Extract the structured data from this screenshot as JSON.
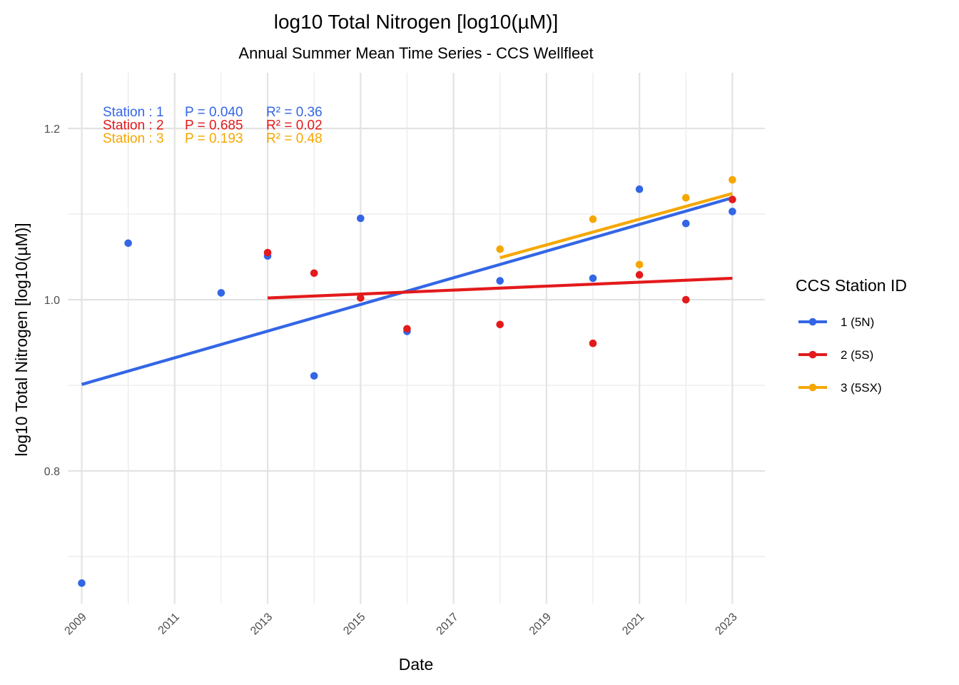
{
  "chart_data": {
    "type": "scatter",
    "title": "log10 Total Nitrogen [log10(µM)]",
    "subtitle": "Annual Summer Mean Time Series - CCS Wellfleet",
    "xlabel": "Date",
    "ylabel": "log10 Total Nitrogen [log10(µM)]",
    "xlim": [
      2008.7,
      2023.7
    ],
    "ylim": [
      0.645,
      1.265
    ],
    "x_ticks": [
      "2009",
      "2011",
      "2013",
      "2015",
      "2017",
      "2019",
      "2021",
      "2023"
    ],
    "y_ticks": [
      "0.8",
      "1.0",
      "1.2"
    ],
    "grid": true,
    "legend": {
      "title": "CCS Station ID",
      "position": "right",
      "entries": [
        "1 (5N)",
        "2 (5S)",
        "3 (5SX)"
      ]
    },
    "annotations": [
      {
        "station": "Station : 1",
        "p": "P = 0.040",
        "r2": "R² = 0.36",
        "color": "#3366e6"
      },
      {
        "station": "Station : 2",
        "p": "P = 0.685",
        "r2": "R² = 0.02",
        "color": "#e31a1c"
      },
      {
        "station": "Station : 3",
        "p": "P = 0.193",
        "r2": "R² = 0.48",
        "color": "#f5a700"
      }
    ],
    "series": [
      {
        "name": "1 (5N)",
        "color": "#3366e6",
        "points": [
          {
            "x": 2009,
            "y": 0.669
          },
          {
            "x": 2010,
            "y": 1.066
          },
          {
            "x": 2012,
            "y": 1.008
          },
          {
            "x": 2013,
            "y": 1.051
          },
          {
            "x": 2014,
            "y": 0.911
          },
          {
            "x": 2015,
            "y": 1.095
          },
          {
            "x": 2016,
            "y": 0.963
          },
          {
            "x": 2018,
            "y": 1.022
          },
          {
            "x": 2020,
            "y": 1.025
          },
          {
            "x": 2021,
            "y": 1.129
          },
          {
            "x": 2022,
            "y": 1.089
          },
          {
            "x": 2023,
            "y": 1.103
          }
        ],
        "trend": [
          {
            "x": 2009,
            "y": 0.901
          },
          {
            "x": 2023,
            "y": 1.119
          }
        ]
      },
      {
        "name": "2 (5S)",
        "color": "#e31a1c",
        "points": [
          {
            "x": 2013,
            "y": 1.055
          },
          {
            "x": 2014,
            "y": 1.031
          },
          {
            "x": 2015,
            "y": 1.002
          },
          {
            "x": 2016,
            "y": 0.966
          },
          {
            "x": 2018,
            "y": 0.971
          },
          {
            "x": 2020,
            "y": 0.949
          },
          {
            "x": 2021,
            "y": 1.029
          },
          {
            "x": 2022,
            "y": 1.0
          },
          {
            "x": 2023,
            "y": 1.117
          }
        ],
        "trend": [
          {
            "x": 2013,
            "y": 1.002
          },
          {
            "x": 2023,
            "y": 1.025
          }
        ]
      },
      {
        "name": "3 (5SX)",
        "color": "#f5a700",
        "points": [
          {
            "x": 2018,
            "y": 1.059
          },
          {
            "x": 2020,
            "y": 1.094
          },
          {
            "x": 2021,
            "y": 1.041
          },
          {
            "x": 2022,
            "y": 1.119
          },
          {
            "x": 2023,
            "y": 1.14
          }
        ],
        "trend": [
          {
            "x": 2018,
            "y": 1.049
          },
          {
            "x": 2023,
            "y": 1.124
          }
        ]
      }
    ]
  }
}
